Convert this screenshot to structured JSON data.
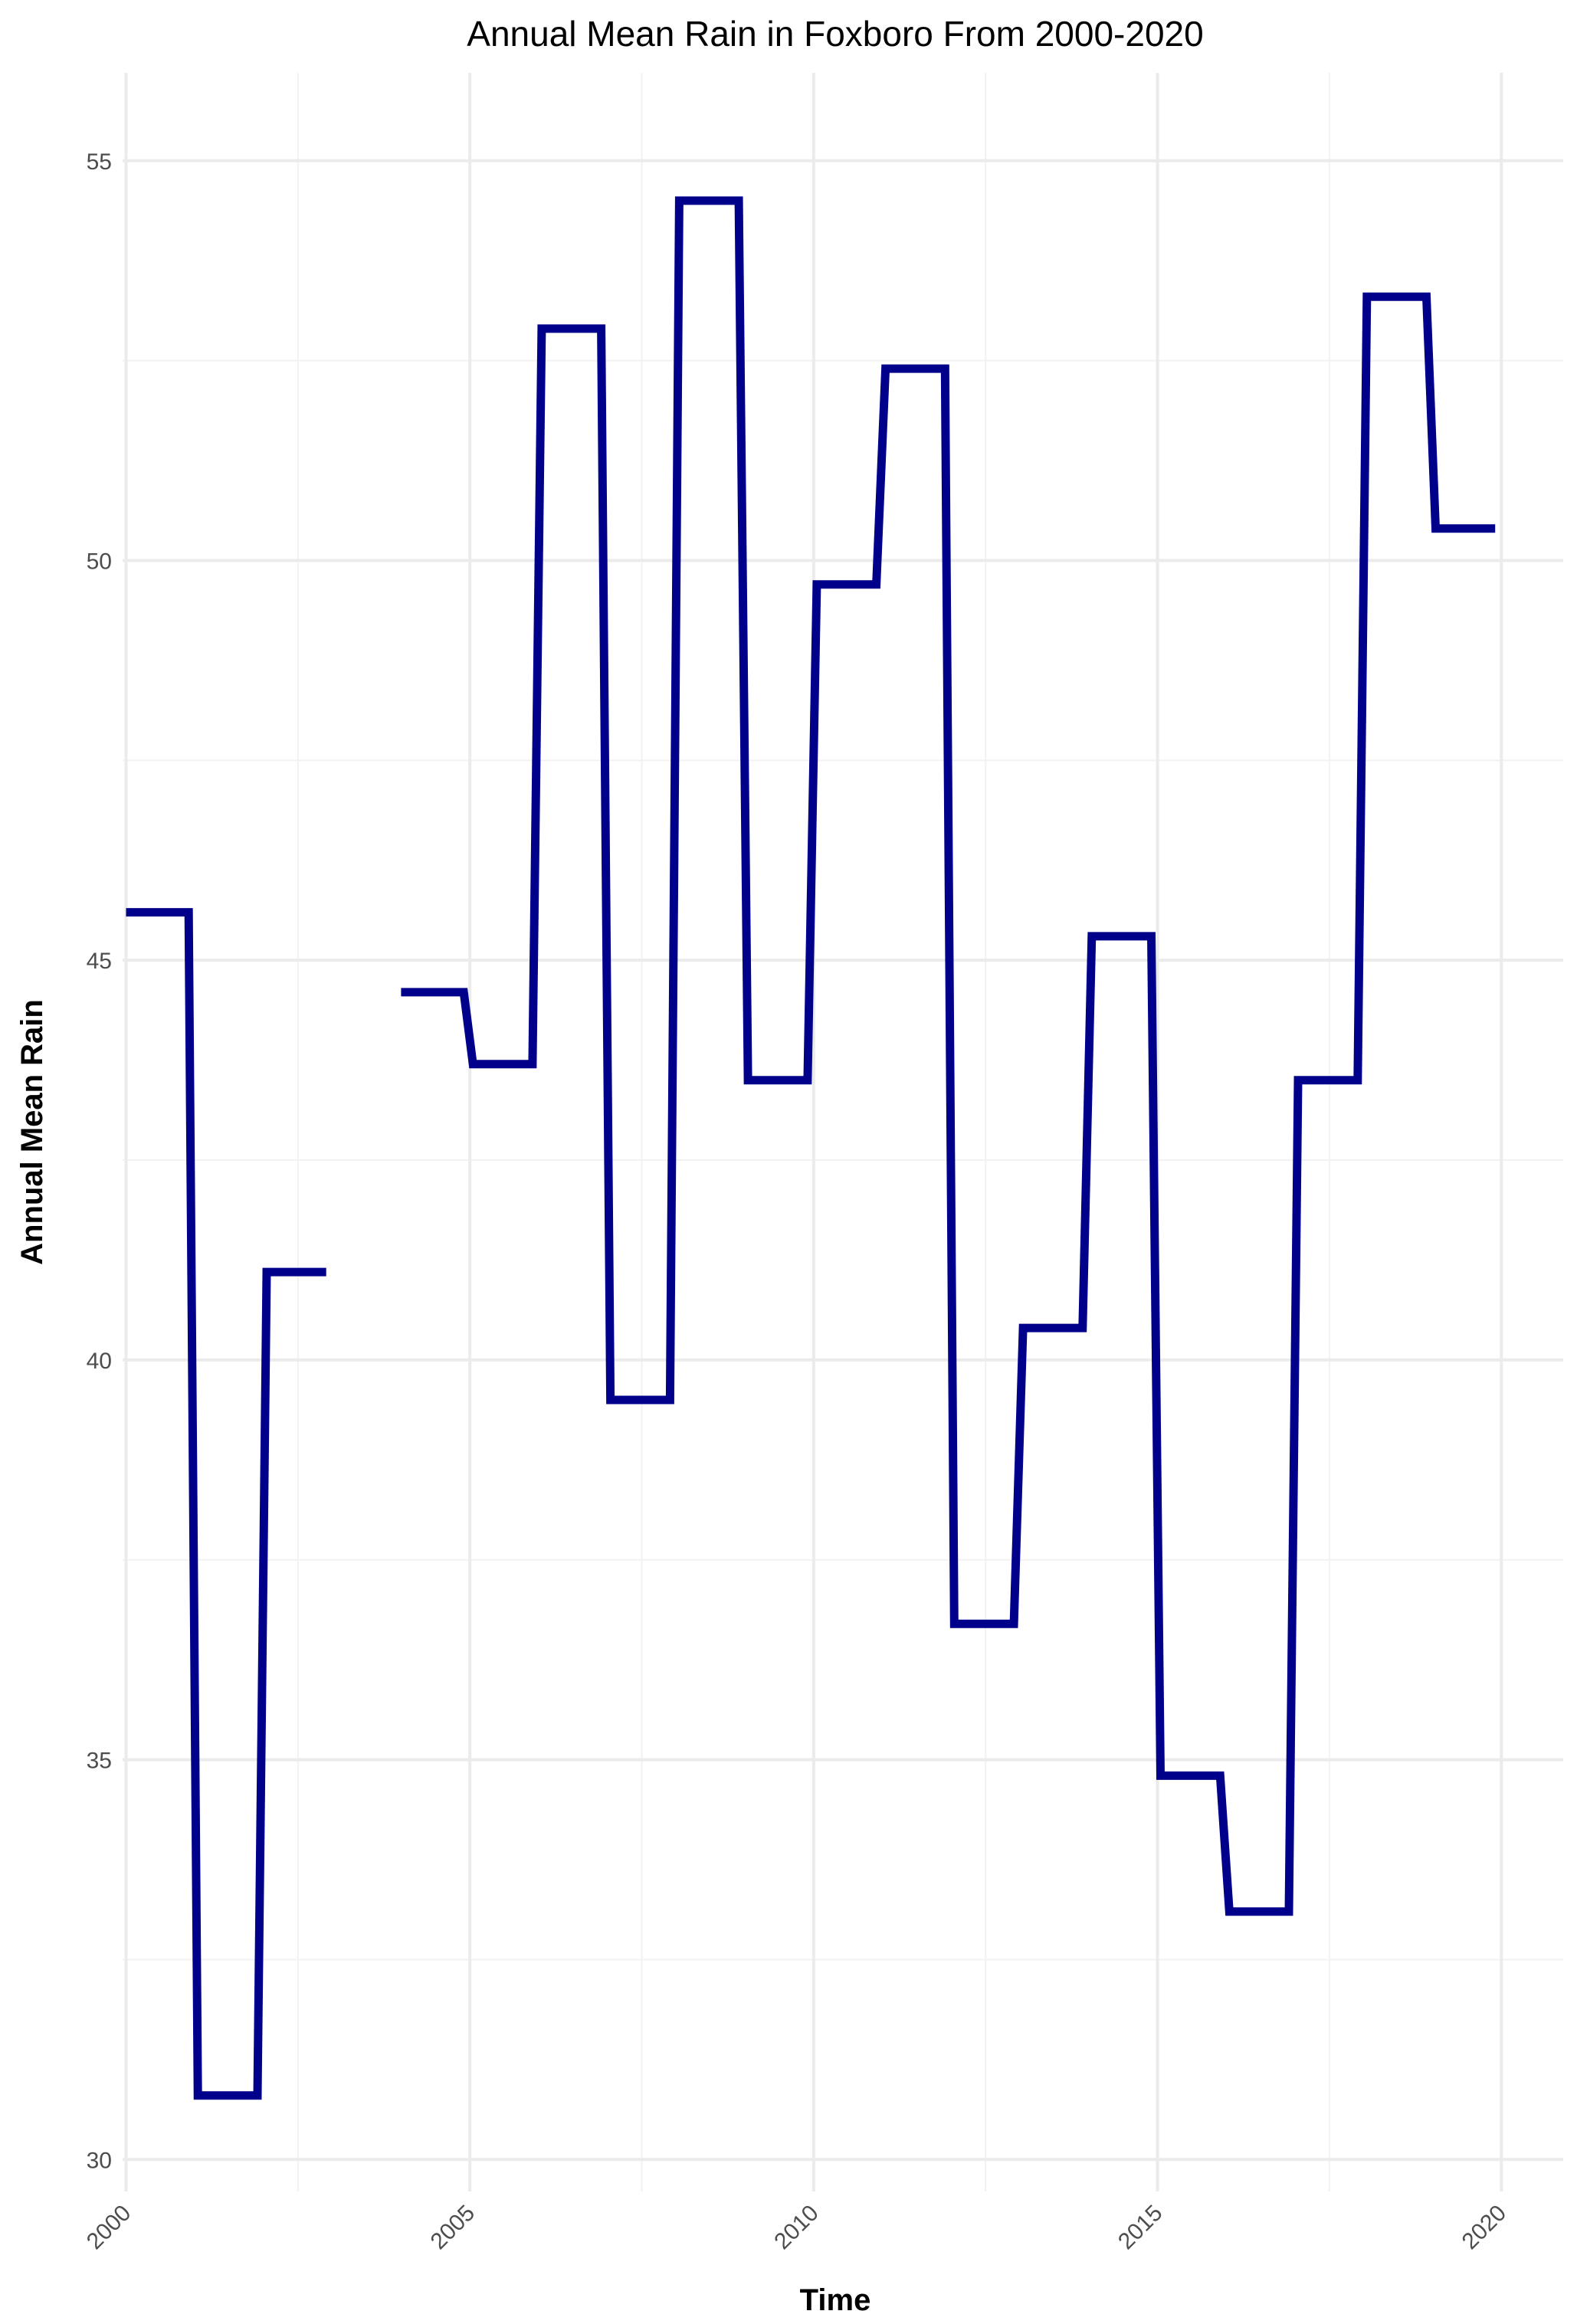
{
  "chart_data": {
    "type": "line",
    "step": true,
    "title": "Annual Mean Rain in Foxboro From 2000-2020",
    "xlabel": "Time",
    "ylabel": "Annual Mean Rain",
    "xlim": [
      1999.95,
      2020.9
    ],
    "ylim": [
      29.6,
      56.1
    ],
    "x_ticks": [
      2000,
      2005,
      2010,
      2015,
      2020
    ],
    "x_tick_labels": [
      "2000",
      "2005",
      "2010",
      "2015",
      "2020"
    ],
    "y_ticks": [
      30,
      35,
      40,
      45,
      50,
      55
    ],
    "y_tick_labels": [
      "30",
      "35",
      "40",
      "45",
      "50",
      "55"
    ],
    "grid": true,
    "legend": "none",
    "series": [
      {
        "color": "#00008b",
        "points": [
          {
            "x": 2000,
            "y": 45.6
          },
          {
            "x": 2001,
            "y": 30.8
          },
          {
            "x": 2002,
            "y": 41.1
          },
          {
            "x": 2003,
            "y": null
          },
          {
            "x": 2004,
            "y": 44.6
          },
          {
            "x": 2005,
            "y": 43.7
          },
          {
            "x": 2006,
            "y": 52.9
          },
          {
            "x": 2007,
            "y": 39.5
          },
          {
            "x": 2008,
            "y": 54.5
          },
          {
            "x": 2009,
            "y": 43.5
          },
          {
            "x": 2010,
            "y": 49.7
          },
          {
            "x": 2011,
            "y": 52.4
          },
          {
            "x": 2012,
            "y": 36.7
          },
          {
            "x": 2013,
            "y": 40.4
          },
          {
            "x": 2014,
            "y": 45.3
          },
          {
            "x": 2015,
            "y": 34.8
          },
          {
            "x": 2016,
            "y": 33.1
          },
          {
            "x": 2017,
            "y": 43.5
          },
          {
            "x": 2018,
            "y": 53.3
          },
          {
            "x": 2019,
            "y": 50.4
          },
          {
            "x": 2020,
            "y": null
          }
        ]
      }
    ]
  }
}
